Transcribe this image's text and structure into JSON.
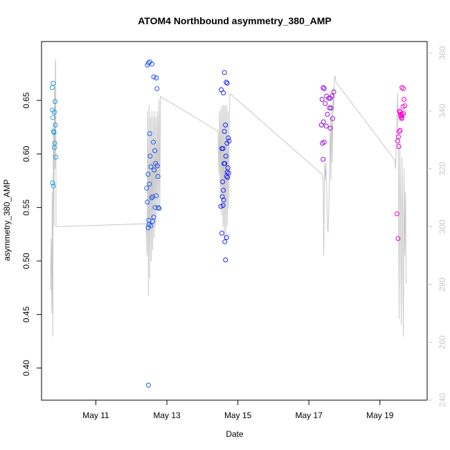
{
  "chart_data": {
    "type": "scatter",
    "title": "ATOM4 Northbound asymmetry_380_AMP",
    "xlabel": "Date",
    "ylabel": "asymmetry_380_AMP",
    "x_ticks": [
      "May 11",
      "May 13",
      "May 15",
      "May 17",
      "May 19"
    ],
    "x_tick_days": [
      11,
      13,
      15,
      17,
      19
    ],
    "xlim_days": [
      9.47,
      20.33
    ],
    "ylim": [
      0.37,
      0.705
    ],
    "y_ticks": [
      0.4,
      0.45,
      0.5,
      0.55,
      0.6,
      0.65
    ],
    "y_tick_labels": [
      "0.40",
      "0.45",
      "0.50",
      "0.55",
      "0.60",
      "0.65"
    ],
    "y2lim": [
      240,
      364
    ],
    "y2_ticks": [
      240,
      260,
      280,
      300,
      320,
      340,
      360
    ],
    "y2_tick_labels": [
      "240",
      "260",
      "280",
      "300",
      "320",
      "340",
      "360"
    ],
    "grid": false,
    "series": [
      {
        "kind": "points",
        "color_start": "#1fa0e0",
        "color_mid": "#1a1aff",
        "color_end": "#ff00cc",
        "points": [
          [
            9.77,
            0.662
          ],
          [
            9.8,
            0.666
          ],
          [
            9.78,
            0.641
          ],
          [
            9.79,
            0.634
          ],
          [
            9.81,
            0.621
          ],
          [
            9.82,
            0.62
          ],
          [
            9.83,
            0.639
          ],
          [
            9.85,
            0.649
          ],
          [
            9.86,
            0.627
          ],
          [
            9.84,
            0.61
          ],
          [
            9.83,
            0.606
          ],
          [
            9.87,
            0.597
          ],
          [
            9.78,
            0.573
          ],
          [
            9.8,
            0.57
          ],
          [
            12.45,
            0.683
          ],
          [
            12.52,
            0.686
          ],
          [
            12.58,
            0.684
          ],
          [
            12.48,
            0.685
          ],
          [
            12.63,
            0.672
          ],
          [
            12.7,
            0.671
          ],
          [
            12.72,
            0.661
          ],
          [
            12.52,
            0.619
          ],
          [
            12.62,
            0.611
          ],
          [
            12.53,
            0.598
          ],
          [
            12.66,
            0.603
          ],
          [
            12.47,
            0.581
          ],
          [
            12.55,
            0.588
          ],
          [
            12.68,
            0.591
          ],
          [
            12.73,
            0.589
          ],
          [
            12.64,
            0.585
          ],
          [
            12.75,
            0.579
          ],
          [
            12.43,
            0.568
          ],
          [
            12.51,
            0.572
          ],
          [
            12.57,
            0.559
          ],
          [
            12.6,
            0.56
          ],
          [
            12.7,
            0.561
          ],
          [
            12.45,
            0.555
          ],
          [
            12.67,
            0.55
          ],
          [
            12.76,
            0.55
          ],
          [
            12.78,
            0.549
          ],
          [
            12.49,
            0.538
          ],
          [
            12.6,
            0.537
          ],
          [
            12.63,
            0.541
          ],
          [
            12.47,
            0.531
          ],
          [
            12.55,
            0.533
          ],
          [
            12.5,
            0.534
          ],
          [
            12.48,
            0.384
          ],
          [
            14.53,
            0.66
          ],
          [
            14.59,
            0.657
          ],
          [
            14.62,
            0.676
          ],
          [
            14.67,
            0.667
          ],
          [
            14.7,
            0.666
          ],
          [
            14.65,
            0.627
          ],
          [
            14.62,
            0.621
          ],
          [
            14.73,
            0.615
          ],
          [
            14.75,
            0.612
          ],
          [
            14.69,
            0.61
          ],
          [
            14.55,
            0.605
          ],
          [
            14.58,
            0.605
          ],
          [
            14.66,
            0.598
          ],
          [
            14.61,
            0.591
          ],
          [
            14.63,
            0.591
          ],
          [
            14.72,
            0.587
          ],
          [
            14.7,
            0.583
          ],
          [
            14.74,
            0.582
          ],
          [
            14.68,
            0.579
          ],
          [
            14.71,
            0.578
          ],
          [
            14.57,
            0.574
          ],
          [
            14.59,
            0.566
          ],
          [
            14.56,
            0.56
          ],
          [
            14.6,
            0.557
          ],
          [
            14.58,
            0.552
          ],
          [
            14.52,
            0.551
          ],
          [
            14.55,
            0.526
          ],
          [
            14.68,
            0.522
          ],
          [
            14.63,
            0.518
          ],
          [
            14.65,
            0.501
          ],
          [
            17.4,
            0.662
          ],
          [
            17.43,
            0.661
          ],
          [
            17.5,
            0.654
          ],
          [
            17.56,
            0.652
          ],
          [
            17.6,
            0.652
          ],
          [
            17.65,
            0.654
          ],
          [
            17.7,
            0.658
          ],
          [
            17.37,
            0.651
          ],
          [
            17.46,
            0.647
          ],
          [
            17.58,
            0.643
          ],
          [
            17.62,
            0.643
          ],
          [
            17.52,
            0.637
          ],
          [
            17.67,
            0.633
          ],
          [
            17.41,
            0.63
          ],
          [
            17.35,
            0.627
          ],
          [
            17.49,
            0.626
          ],
          [
            17.6,
            0.624
          ],
          [
            17.43,
            0.611
          ],
          [
            17.38,
            0.61
          ],
          [
            17.4,
            0.595
          ],
          [
            19.62,
            0.662
          ],
          [
            19.66,
            0.661
          ],
          [
            19.68,
            0.651
          ],
          [
            19.65,
            0.644
          ],
          [
            19.7,
            0.645
          ],
          [
            19.55,
            0.64
          ],
          [
            19.58,
            0.637
          ],
          [
            19.6,
            0.636
          ],
          [
            19.62,
            0.634
          ],
          [
            19.57,
            0.639
          ],
          [
            19.59,
            0.635
          ],
          [
            19.63,
            0.637
          ],
          [
            19.66,
            0.638
          ],
          [
            19.61,
            0.633
          ],
          [
            19.54,
            0.621
          ],
          [
            19.57,
            0.622
          ],
          [
            19.52,
            0.616
          ],
          [
            19.5,
            0.612
          ],
          [
            19.53,
            0.607
          ],
          [
            19.48,
            0.544
          ],
          [
            19.51,
            0.521
          ]
        ]
      },
      {
        "kind": "line",
        "axis": "right",
        "color": "#c8c8c8",
        "segments": [
          [
            [
              9.72,
              278
            ],
            [
              9.74,
              296
            ],
            [
              9.76,
              270
            ],
            [
              9.77,
              312
            ],
            [
              9.79,
              262
            ],
            [
              9.8,
              336
            ],
            [
              9.82,
              300
            ],
            [
              9.83,
              348
            ],
            [
              9.85,
              320
            ],
            [
              9.86,
              358
            ],
            [
              9.87,
              356
            ],
            [
              9.88,
              300
            ],
            [
              12.42,
              301
            ],
            [
              12.44,
              290
            ],
            [
              12.46,
              340
            ],
            [
              12.48,
              276
            ],
            [
              12.5,
              342
            ],
            [
              12.52,
              282
            ],
            [
              12.54,
              338
            ],
            [
              12.56,
              288
            ],
            [
              12.58,
              340
            ],
            [
              12.6,
              292
            ],
            [
              12.62,
              338
            ],
            [
              12.64,
              296
            ],
            [
              12.66,
              340
            ],
            [
              12.68,
              300
            ],
            [
              12.7,
              338
            ],
            [
              12.72,
              304
            ],
            [
              12.74,
              340
            ],
            [
              12.76,
              306
            ],
            [
              12.78,
              344
            ],
            [
              12.8,
              306
            ],
            [
              12.82,
              345
            ],
            [
              14.44,
              333
            ],
            [
              14.46,
              318
            ],
            [
              14.48,
              340
            ],
            [
              14.5,
              310
            ],
            [
              14.52,
              341
            ],
            [
              14.54,
              304
            ],
            [
              14.56,
              342
            ],
            [
              14.58,
              300
            ],
            [
              14.6,
              342
            ],
            [
              14.62,
              296
            ],
            [
              14.64,
              342
            ],
            [
              14.66,
              296
            ],
            [
              14.68,
              342
            ],
            [
              14.7,
              300
            ],
            [
              14.72,
              340
            ],
            [
              14.74,
              306
            ],
            [
              14.76,
              340
            ],
            [
              14.78,
              346
            ],
            [
              17.38,
              318
            ],
            [
              17.4,
              316
            ],
            [
              17.42,
              290
            ],
            [
              17.44,
              322
            ],
            [
              17.46,
              316
            ],
            [
              17.48,
              322
            ],
            [
              17.5,
              312
            ],
            [
              17.52,
              300
            ],
            [
              17.54,
              298
            ],
            [
              17.56,
              306
            ],
            [
              17.58,
              318
            ],
            [
              17.6,
              338
            ],
            [
              17.62,
              316
            ],
            [
              17.64,
              342
            ],
            [
              17.66,
              322
            ],
            [
              17.68,
              348
            ],
            [
              17.7,
              340
            ],
            [
              17.72,
              352
            ],
            [
              17.74,
              352
            ],
            [
              17.76,
              350
            ],
            [
              19.42,
              323
            ],
            [
              19.44,
              320
            ],
            [
              19.46,
              330
            ],
            [
              19.48,
              340
            ],
            [
              19.5,
              346
            ],
            [
              19.52,
              318
            ],
            [
              19.54,
              268
            ],
            [
              19.56,
              330
            ],
            [
              19.58,
              306
            ],
            [
              19.6,
              266
            ],
            [
              19.62,
              324
            ],
            [
              19.64,
              300
            ],
            [
              19.66,
              262
            ],
            [
              19.68,
              320
            ],
            [
              19.7,
              290
            ],
            [
              19.72,
              312
            ],
            [
              19.74,
              280
            ]
          ]
        ]
      }
    ]
  }
}
